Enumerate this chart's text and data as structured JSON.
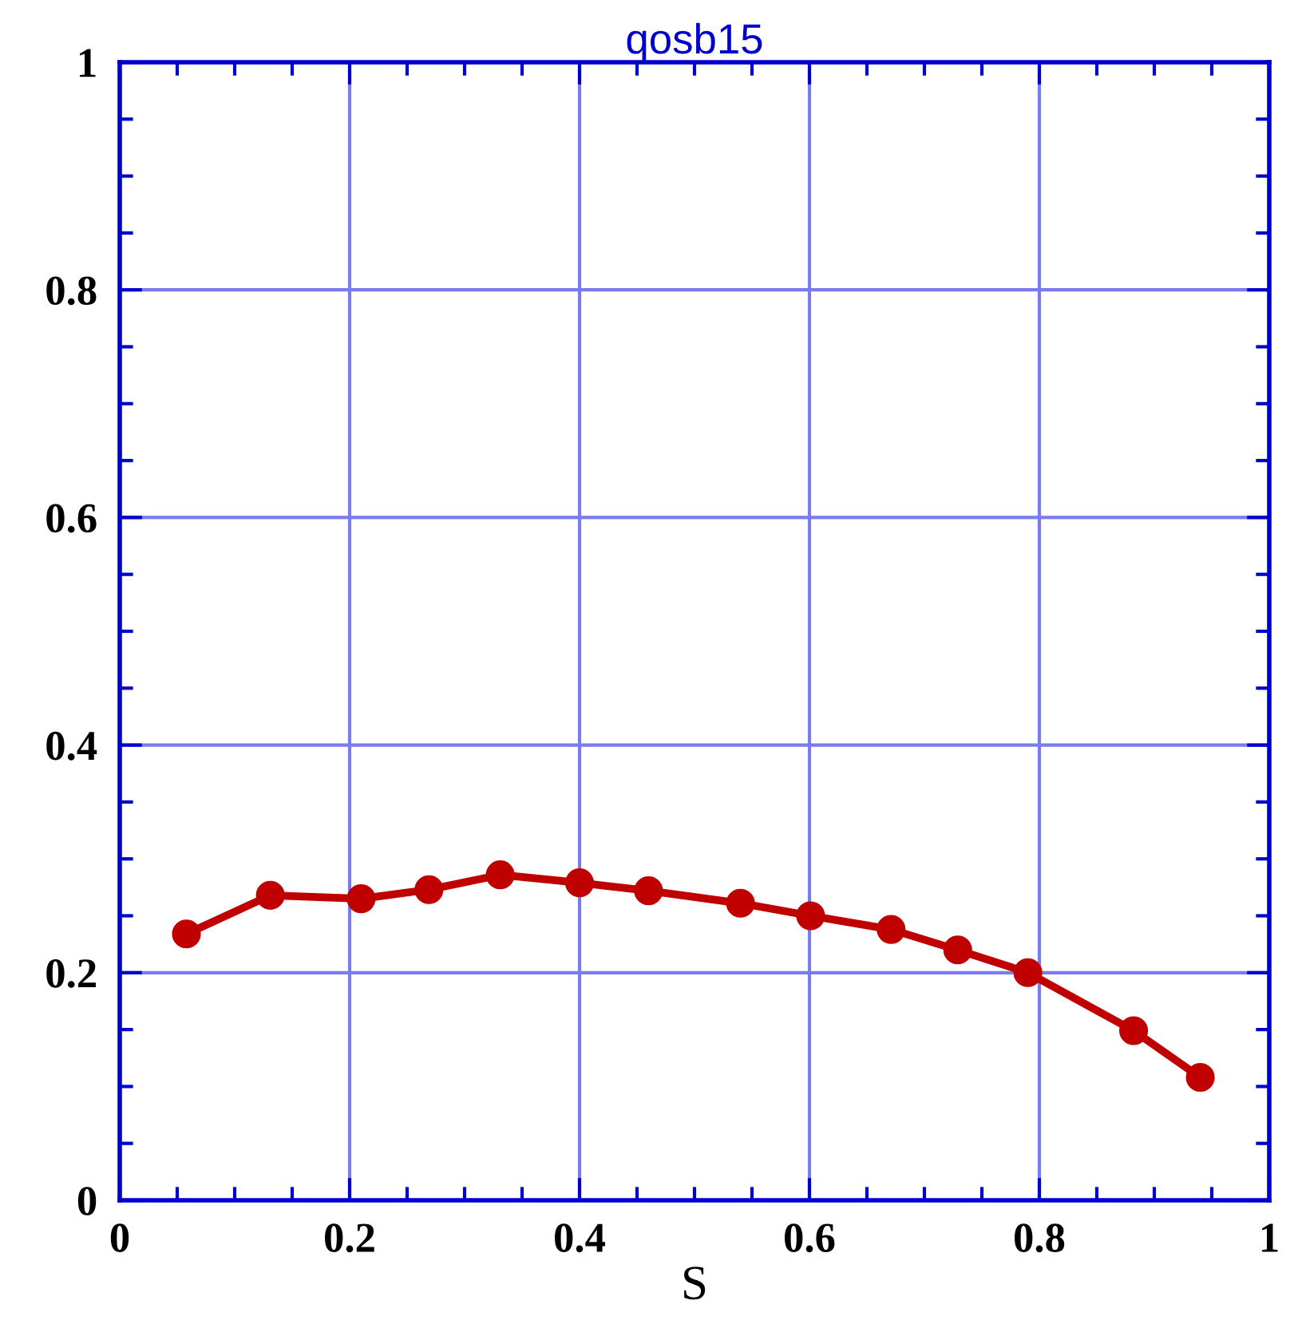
{
  "chart_data": {
    "type": "line",
    "title": "qosb15",
    "xlabel": "S",
    "x": [
      0.058,
      0.131,
      0.21,
      0.269,
      0.331,
      0.4,
      0.46,
      0.54,
      0.601,
      0.671,
      0.729,
      0.79,
      0.882,
      0.94
    ],
    "series": [
      {
        "color": "#c00000",
        "values": [
          0.234,
          0.268,
          0.265,
          0.273,
          0.286,
          0.279,
          0.272,
          0.261,
          0.25,
          0.238,
          0.22,
          0.2,
          0.149,
          0.108
        ]
      }
    ],
    "xlim": [
      0,
      1
    ],
    "ylim": [
      0,
      1
    ],
    "xticks": [
      0,
      0.2,
      0.4,
      0.6,
      0.8,
      1
    ],
    "yticks": [
      0,
      0.2,
      0.4,
      0.6,
      0.8,
      1
    ],
    "grid": true,
    "marker": "circle",
    "line_style": "solid"
  }
}
